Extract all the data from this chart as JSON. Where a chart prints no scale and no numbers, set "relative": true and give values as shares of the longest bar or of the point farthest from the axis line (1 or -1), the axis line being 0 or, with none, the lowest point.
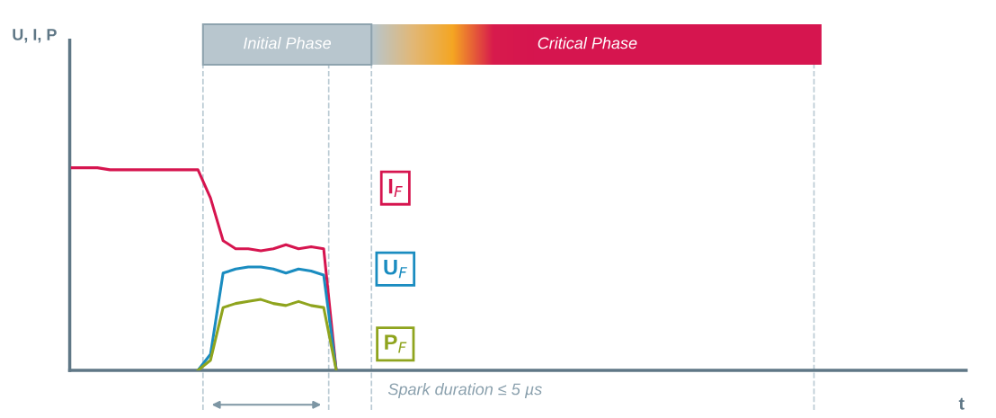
{
  "chart_data": {
    "type": "line",
    "relative": true,
    "xlabel": "t",
    "legend": false,
    "marker": "none",
    "line_style": "solid",
    "categories": [
      null,
      null,
      null,
      null,
      null,
      null,
      null,
      null,
      null,
      null,
      null,
      null,
      null,
      null,
      null,
      null,
      null,
      null,
      null,
      null,
      null,
      null,
      null,
      null,
      null,
      null,
      null,
      null,
      null,
      null,
      null,
      null,
      null,
      null,
      null,
      null,
      null,
      null,
      null,
      null,
      null,
      null,
      null,
      null,
      null,
      null,
      null,
      null,
      null,
      null,
      null,
      null,
      null,
      null,
      null,
      null,
      null,
      null,
      null,
      null,
      null,
      null,
      null,
      null,
      null,
      null,
      null,
      null,
      null,
      null,
      null
    ],
    "series": [
      {
        "name": "I$_{F}$",
        "color": "#d6154f",
        "values": [
          1,
          1,
          1,
          0.99,
          0.99,
          0.99,
          0.99,
          0.99,
          0.99,
          0.99,
          0.99,
          0.85,
          0.64,
          0.6,
          0.6,
          0.59,
          0.6,
          0.62,
          0.6,
          0.61,
          0.6,
          0,
          null,
          null,
          null,
          null,
          null,
          null,
          null,
          null,
          null,
          null,
          null,
          null,
          null,
          null,
          null,
          null,
          null,
          null,
          null,
          null,
          null,
          null,
          null,
          null,
          null,
          null,
          null,
          null,
          null,
          null,
          null,
          null,
          null,
          null,
          null,
          null,
          null,
          null,
          null,
          null,
          null,
          null,
          null,
          null,
          null,
          null,
          null,
          null,
          null
        ]
      },
      {
        "name": "U$_{F}$",
        "color": "#1a8cc0",
        "values": [
          null,
          null,
          null,
          null,
          null,
          null,
          null,
          null,
          null,
          null,
          0,
          0.08,
          0.48,
          0.5,
          0.51,
          0.51,
          0.5,
          0.48,
          0.5,
          0.49,
          0.47,
          0,
          null,
          null,
          null,
          null,
          null,
          null,
          null,
          null,
          null,
          null,
          null,
          null,
          null,
          null,
          null,
          null,
          null,
          null,
          null,
          null,
          null,
          null,
          null,
          null,
          null,
          null,
          null,
          null,
          null,
          null,
          null,
          null,
          null,
          null,
          null,
          null,
          null,
          null,
          null,
          null,
          null,
          null,
          null,
          null,
          null,
          null,
          null,
          null,
          null
        ]
      },
      {
        "name": "P$_{F}$",
        "color": "#8fa41e",
        "values": [
          null,
          null,
          null,
          null,
          null,
          null,
          null,
          null,
          null,
          null,
          0,
          0.05,
          0.31,
          0.33,
          0.34,
          0.35,
          0.33,
          0.32,
          0.34,
          0.32,
          0.31,
          0,
          null,
          null,
          null,
          null,
          null,
          null,
          null,
          null,
          null,
          null,
          null,
          null,
          null,
          null,
          null,
          null,
          null,
          null,
          null,
          null,
          null,
          null,
          null,
          null,
          null,
          null,
          null,
          null,
          null,
          null,
          null,
          null,
          null,
          null,
          null,
          null,
          null,
          null,
          null,
          null,
          null,
          null,
          null,
          null,
          null,
          null,
          null,
          null,
          null
        ]
      }
    ],
    "annotations": [
      "Initial Phase",
      "Critical Phase",
      "Spark duration ≤ 5 µs",
      "U, I, P"
    ]
  }
}
